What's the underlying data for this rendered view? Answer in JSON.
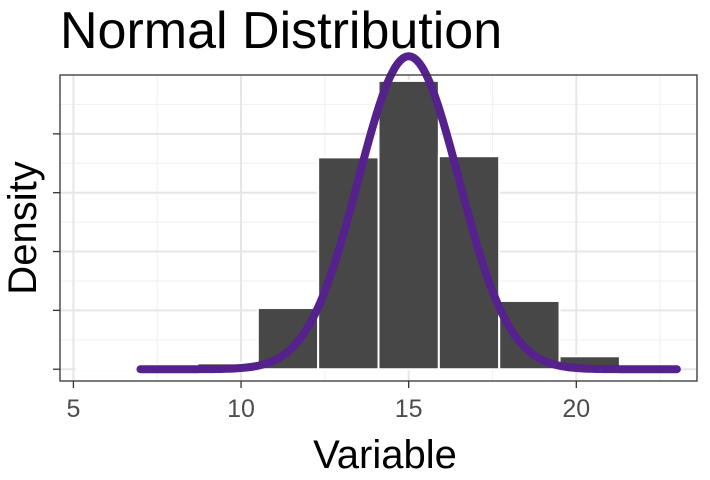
{
  "chart_data": {
    "type": "bar",
    "title": "Normal Distribution",
    "xlabel": "Variable",
    "ylabel": "Density",
    "xlim": [
      4.6,
      23.6
    ],
    "ylim": [
      -0.01,
      0.25
    ],
    "x_ticks": [
      5,
      10,
      15,
      20
    ],
    "y_tick_labels_shown": false,
    "grid": true,
    "bar_color": "#474747",
    "bar_edge_color": "#ffffff",
    "curve_color": "#55218d",
    "histogram": {
      "bin_width": 1.8,
      "bins": [
        {
          "x_center": 6.0,
          "density": 0.001
        },
        {
          "x_center": 7.8,
          "density": 0.0
        },
        {
          "x_center": 9.6,
          "density": 0.005
        },
        {
          "x_center": 11.4,
          "density": 0.052
        },
        {
          "x_center": 13.2,
          "density": 0.18
        },
        {
          "x_center": 15.0,
          "density": 0.245
        },
        {
          "x_center": 16.8,
          "density": 0.181
        },
        {
          "x_center": 18.6,
          "density": 0.058
        },
        {
          "x_center": 20.4,
          "density": 0.011
        }
      ]
    },
    "curve": {
      "type": "normal_density",
      "mean": 15,
      "sd": 1.5,
      "x_range": [
        7,
        23
      ]
    }
  }
}
